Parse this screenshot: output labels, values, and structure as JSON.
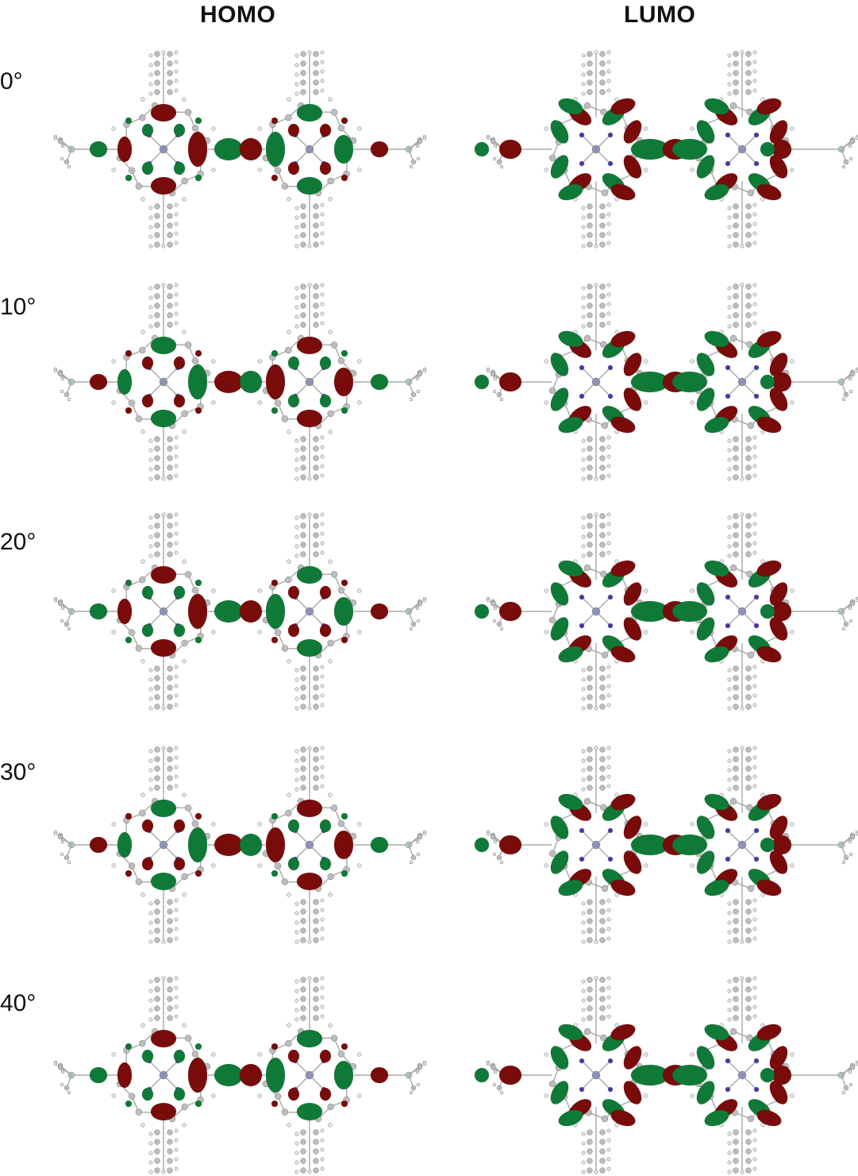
{
  "columns": {
    "homo": "HOMO",
    "lumo": "LUMO"
  },
  "rows": [
    {
      "angle_label": "0°",
      "dihedral_deg": 0
    },
    {
      "angle_label": "10°",
      "dihedral_deg": 10
    },
    {
      "angle_label": "20°",
      "dihedral_deg": 20
    },
    {
      "angle_label": "30°",
      "dihedral_deg": 30
    },
    {
      "angle_label": "40°",
      "dihedral_deg": 40
    }
  ],
  "colors": {
    "lobe_positive": "#0f7a37",
    "lobe_negative": "#7a0b0b",
    "carbon": "#bdbdbd",
    "hydrogen": "#e6e6e6",
    "nitrogen": "#3a3ab0",
    "zinc": "#8e92b8",
    "silicon": "#a9c9c9",
    "bond": "#a8a8a8"
  }
}
